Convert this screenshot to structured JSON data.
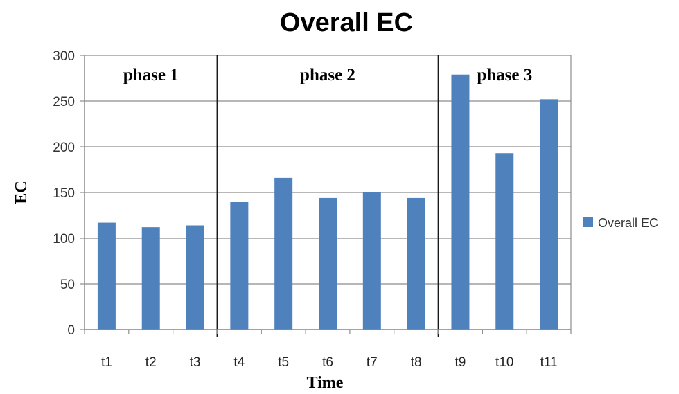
{
  "chart_data": {
    "type": "bar",
    "title": "Overall EC",
    "xlabel": "Time",
    "ylabel": "EC",
    "ylim": [
      0,
      300
    ],
    "yticks": [
      0,
      50,
      100,
      150,
      200,
      250,
      300
    ],
    "grid": true,
    "legend_position": "right",
    "categories": [
      "t1",
      "t2",
      "t3",
      "t4",
      "t5",
      "t6",
      "t7",
      "t8",
      "t9",
      "t10",
      "t11"
    ],
    "series": [
      {
        "name": "Overall EC",
        "color": "#4f81bd",
        "values": [
          117,
          112,
          114,
          140,
          166,
          144,
          150,
          144,
          279,
          193,
          252
        ]
      }
    ],
    "phases": [
      {
        "label": "phase 1",
        "start_index": 0,
        "end_index": 2
      },
      {
        "label": "phase 2",
        "start_index": 3,
        "end_index": 7
      },
      {
        "label": "phase 3",
        "start_index": 8,
        "end_index": 10
      }
    ]
  }
}
